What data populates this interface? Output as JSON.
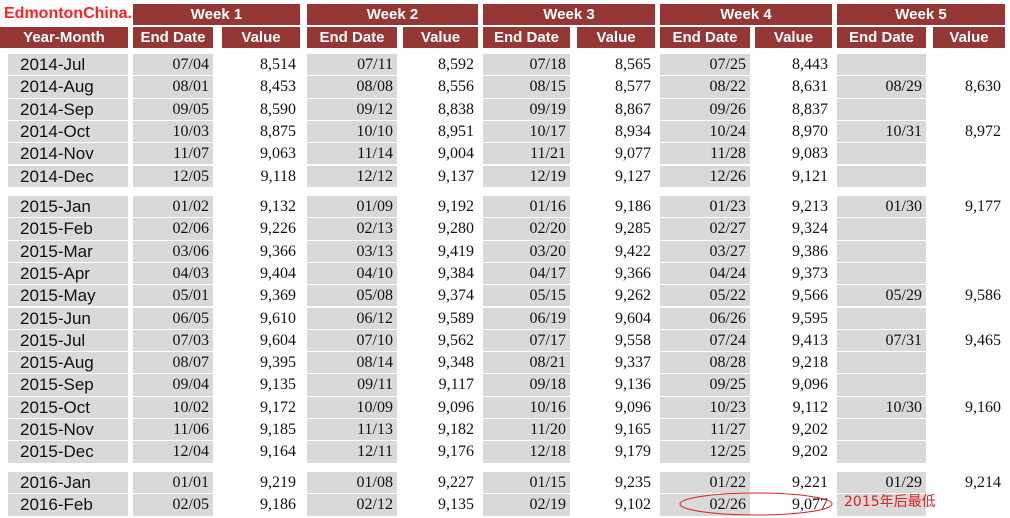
{
  "watermark": "EdmontonChina.NET",
  "header": {
    "weeks": [
      "Week 1",
      "Week 2",
      "Week 3",
      "Week 4",
      "Week 5"
    ],
    "columns": [
      "Year-Month",
      "End Date",
      "Value",
      "End Date",
      "Value",
      "End Date",
      "Value",
      "End Date",
      "Value",
      "End Date",
      "Value"
    ]
  },
  "groups": [
    {
      "rows": [
        {
          "month": "2014-Jul",
          "weeks": [
            {
              "end": "07/04",
              "value": "8,514"
            },
            {
              "end": "07/11",
              "value": "8,592"
            },
            {
              "end": "07/18",
              "value": "8,565"
            },
            {
              "end": "07/25",
              "value": "8,443"
            }
          ]
        },
        {
          "month": "2014-Aug",
          "weeks": [
            {
              "end": "08/01",
              "value": "8,453"
            },
            {
              "end": "08/08",
              "value": "8,556"
            },
            {
              "end": "08/15",
              "value": "8,577"
            },
            {
              "end": "08/22",
              "value": "8,631"
            },
            {
              "end": "08/29",
              "value": "8,630"
            }
          ]
        },
        {
          "month": "2014-Sep",
          "weeks": [
            {
              "end": "09/05",
              "value": "8,590"
            },
            {
              "end": "09/12",
              "value": "8,838"
            },
            {
              "end": "09/19",
              "value": "8,867"
            },
            {
              "end": "09/26",
              "value": "8,837"
            }
          ]
        },
        {
          "month": "2014-Oct",
          "weeks": [
            {
              "end": "10/03",
              "value": "8,875"
            },
            {
              "end": "10/10",
              "value": "8,951"
            },
            {
              "end": "10/17",
              "value": "8,934"
            },
            {
              "end": "10/24",
              "value": "8,970"
            },
            {
              "end": "10/31",
              "value": "8,972"
            }
          ]
        },
        {
          "month": "2014-Nov",
          "weeks": [
            {
              "end": "11/07",
              "value": "9,063"
            },
            {
              "end": "11/14",
              "value": "9,004"
            },
            {
              "end": "11/21",
              "value": "9,077"
            },
            {
              "end": "11/28",
              "value": "9,083"
            }
          ]
        },
        {
          "month": "2014-Dec",
          "weeks": [
            {
              "end": "12/05",
              "value": "9,118"
            },
            {
              "end": "12/12",
              "value": "9,137"
            },
            {
              "end": "12/19",
              "value": "9,127"
            },
            {
              "end": "12/26",
              "value": "9,121"
            }
          ]
        }
      ]
    },
    {
      "rows": [
        {
          "month": "2015-Jan",
          "weeks": [
            {
              "end": "01/02",
              "value": "9,132"
            },
            {
              "end": "01/09",
              "value": "9,192"
            },
            {
              "end": "01/16",
              "value": "9,186"
            },
            {
              "end": "01/23",
              "value": "9,213"
            },
            {
              "end": "01/30",
              "value": "9,177"
            }
          ]
        },
        {
          "month": "2015-Feb",
          "weeks": [
            {
              "end": "02/06",
              "value": "9,226"
            },
            {
              "end": "02/13",
              "value": "9,280"
            },
            {
              "end": "02/20",
              "value": "9,285"
            },
            {
              "end": "02/27",
              "value": "9,324"
            }
          ]
        },
        {
          "month": "2015-Mar",
          "weeks": [
            {
              "end": "03/06",
              "value": "9,366"
            },
            {
              "end": "03/13",
              "value": "9,419"
            },
            {
              "end": "03/20",
              "value": "9,422"
            },
            {
              "end": "03/27",
              "value": "9,386"
            }
          ]
        },
        {
          "month": "2015-Apr",
          "weeks": [
            {
              "end": "04/03",
              "value": "9,404"
            },
            {
              "end": "04/10",
              "value": "9,384"
            },
            {
              "end": "04/17",
              "value": "9,366"
            },
            {
              "end": "04/24",
              "value": "9,373"
            }
          ]
        },
        {
          "month": "2015-May",
          "weeks": [
            {
              "end": "05/01",
              "value": "9,369"
            },
            {
              "end": "05/08",
              "value": "9,374"
            },
            {
              "end": "05/15",
              "value": "9,262"
            },
            {
              "end": "05/22",
              "value": "9,566"
            },
            {
              "end": "05/29",
              "value": "9,586"
            }
          ]
        },
        {
          "month": "2015-Jun",
          "weeks": [
            {
              "end": "06/05",
              "value": "9,610"
            },
            {
              "end": "06/12",
              "value": "9,589"
            },
            {
              "end": "06/19",
              "value": "9,604"
            },
            {
              "end": "06/26",
              "value": "9,595"
            }
          ]
        },
        {
          "month": "2015-Jul",
          "weeks": [
            {
              "end": "07/03",
              "value": "9,604"
            },
            {
              "end": "07/10",
              "value": "9,562"
            },
            {
              "end": "07/17",
              "value": "9,558"
            },
            {
              "end": "07/24",
              "value": "9,413"
            },
            {
              "end": "07/31",
              "value": "9,465"
            }
          ]
        },
        {
          "month": "2015-Aug",
          "weeks": [
            {
              "end": "08/07",
              "value": "9,395"
            },
            {
              "end": "08/14",
              "value": "9,348"
            },
            {
              "end": "08/21",
              "value": "9,337"
            },
            {
              "end": "08/28",
              "value": "9,218"
            }
          ]
        },
        {
          "month": "2015-Sep",
          "weeks": [
            {
              "end": "09/04",
              "value": "9,135"
            },
            {
              "end": "09/11",
              "value": "9,117"
            },
            {
              "end": "09/18",
              "value": "9,136"
            },
            {
              "end": "09/25",
              "value": "9,096"
            }
          ]
        },
        {
          "month": "2015-Oct",
          "weeks": [
            {
              "end": "10/02",
              "value": "9,172"
            },
            {
              "end": "10/09",
              "value": "9,096"
            },
            {
              "end": "10/16",
              "value": "9,096"
            },
            {
              "end": "10/23",
              "value": "9,112"
            },
            {
              "end": "10/30",
              "value": "9,160"
            }
          ]
        },
        {
          "month": "2015-Nov",
          "weeks": [
            {
              "end": "11/06",
              "value": "9,185"
            },
            {
              "end": "11/13",
              "value": "9,182"
            },
            {
              "end": "11/20",
              "value": "9,165"
            },
            {
              "end": "11/27",
              "value": "9,202"
            }
          ]
        },
        {
          "month": "2015-Dec",
          "weeks": [
            {
              "end": "12/04",
              "value": "9,164"
            },
            {
              "end": "12/11",
              "value": "9,176"
            },
            {
              "end": "12/18",
              "value": "9,179"
            },
            {
              "end": "12/25",
              "value": "9,202"
            }
          ]
        }
      ]
    },
    {
      "rows": [
        {
          "month": "2016-Jan",
          "weeks": [
            {
              "end": "01/01",
              "value": "9,219"
            },
            {
              "end": "01/08",
              "value": "9,227"
            },
            {
              "end": "01/15",
              "value": "9,235"
            },
            {
              "end": "01/22",
              "value": "9,221"
            },
            {
              "end": "01/29",
              "value": "9,214"
            }
          ]
        },
        {
          "month": "2016-Feb",
          "weeks": [
            {
              "end": "02/05",
              "value": "9,186"
            },
            {
              "end": "02/12",
              "value": "9,135"
            },
            {
              "end": "02/19",
              "value": "9,102"
            },
            {
              "end": "02/26",
              "value": "9,077"
            }
          ]
        }
      ]
    }
  ],
  "annotation": "2015年后最低"
}
